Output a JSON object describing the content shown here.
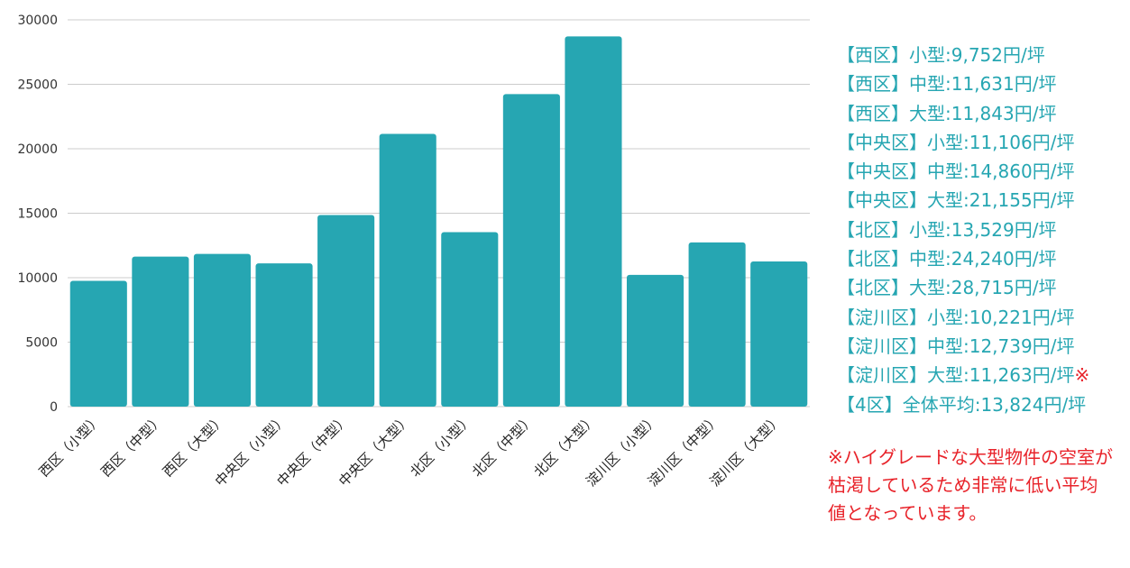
{
  "colors": {
    "bar": "#26a6b2",
    "legend_text": "#26a6b2",
    "note_text": "#e8232a",
    "grid": "#cccccc"
  },
  "chart_data": {
    "type": "bar",
    "categories": [
      "西区（小型）",
      "西区（中型）",
      "西区（大型）",
      "中央区（小型）",
      "中央区（中型）",
      "中央区（大型）",
      "北区（小型）",
      "北区（中型）",
      "北区（大型）",
      "淀川区（小型）",
      "淀川区（中型）",
      "淀川区（大型）"
    ],
    "values": [
      9752,
      11631,
      11843,
      11106,
      14860,
      21155,
      13529,
      24240,
      28715,
      10221,
      12739,
      11263
    ],
    "yticks": [
      "0",
      "5000",
      "10000",
      "15000",
      "20000",
      "25000",
      "30000"
    ],
    "ylim": [
      0,
      30000
    ],
    "grid": true,
    "legend_position": "right",
    "labels": [
      {
        "text": "【西区】小型:9,752円/坪",
        "mark": ""
      },
      {
        "text": "【西区】中型:11,631円/坪",
        "mark": ""
      },
      {
        "text": "【西区】大型:11,843円/坪",
        "mark": ""
      },
      {
        "text": "【中央区】小型:11,106円/坪",
        "mark": ""
      },
      {
        "text": "【中央区】中型:14,860円/坪",
        "mark": ""
      },
      {
        "text": "【中央区】大型:21,155円/坪",
        "mark": ""
      },
      {
        "text": "【北区】小型:13,529円/坪",
        "mark": ""
      },
      {
        "text": "【北区】中型:24,240円/坪",
        "mark": ""
      },
      {
        "text": "【北区】大型:28,715円/坪",
        "mark": ""
      },
      {
        "text": "【淀川区】小型:10,221円/坪",
        "mark": ""
      },
      {
        "text": "【淀川区】中型:12,739円/坪",
        "mark": ""
      },
      {
        "text": "【淀川区】大型:11,263円/坪",
        "mark": "※"
      },
      {
        "text": "【4区】全体平均:13,824円/坪",
        "mark": ""
      }
    ],
    "note": "※ハイグレードな大型物件の空室が枯渇しているため非常に低い平均値となっています。"
  }
}
